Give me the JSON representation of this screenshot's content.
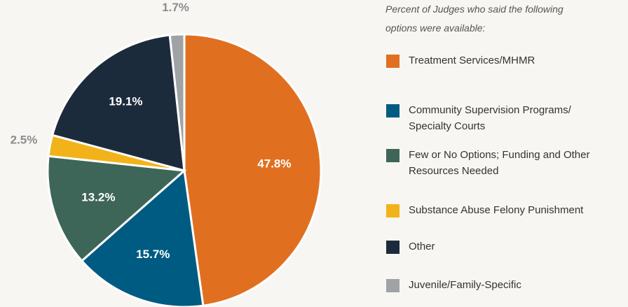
{
  "chart_data": {
    "type": "pie",
    "subtitle": "Percent of Judges who said the following options were available:",
    "categories": [
      "Treatment Services/MHMR",
      "Community Supervision Programs/ Specialty Courts",
      "Few or No Options; Funding and Other Resources Needed",
      "Substance Abuse Felony Punishment",
      "Other",
      "Juvenile/Family-Specific"
    ],
    "values": [
      47.8,
      15.7,
      13.2,
      2.5,
      19.1,
      1.7
    ],
    "value_labels": [
      "47.8%",
      "15.7%",
      "13.2%",
      "2.5%",
      "19.1%",
      "1.7%"
    ],
    "colors": [
      "#e07020",
      "#005b82",
      "#3e6658",
      "#f2b31a",
      "#1c2b3c",
      "#a0a3a6"
    ],
    "legend": "right"
  }
}
